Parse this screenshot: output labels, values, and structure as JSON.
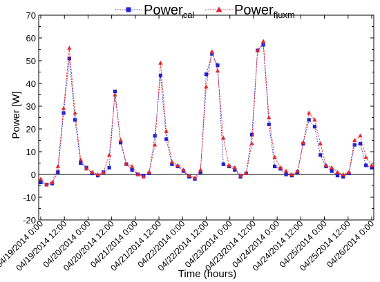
{
  "chart_data": {
    "type": "line",
    "xlabel": "Time (hours)",
    "ylabel": "Power [W]",
    "ylim": [
      -20,
      70
    ],
    "yticks": [
      -20,
      -10,
      0,
      10,
      20,
      30,
      40,
      50,
      60,
      70
    ],
    "xlim": [
      0,
      7
    ],
    "xunit": "days since 04/19/2014 0:00",
    "xtick_labels": [
      "04/19/2014 0:00",
      "04/19/2014 12:00",
      "04/20/2014 0:00",
      "04/20/2014 12:00",
      "04/21/2014 0:00",
      "04/21/2014 12:00",
      "04/22/2014 0:00",
      "04/22/2014 12:00",
      "04/23/2014 0:00",
      "04/23/2014 12:00",
      "04/24/2014 0:00",
      "04/24/2014 12:00",
      "04/25/2014 0:00",
      "04/25/2014 12:00",
      "04/26/2014 0:00"
    ],
    "grid": false,
    "legend_position": "top-center",
    "series": [
      {
        "name_main": "Power",
        "name_sub": "cal",
        "color": "#1f1fd1",
        "marker": "square",
        "values": [
          -3.5,
          -4.5,
          -4,
          1,
          27,
          51,
          24,
          5,
          3,
          0.5,
          -0.5,
          1,
          3,
          36.5,
          14,
          4.5,
          2,
          0,
          -0.5,
          0.5,
          17,
          43.5,
          15.5,
          4.5,
          3.5,
          1.5,
          -1,
          -2,
          1,
          44,
          53,
          48,
          4.5,
          3.5,
          2,
          -1,
          0.5,
          17.5,
          54.5,
          57,
          22,
          3.5,
          2.5,
          0,
          -0.5,
          1,
          13.5,
          24,
          21,
          8.5,
          3.5,
          1.5,
          -0.5,
          -1,
          0.5,
          13,
          13.5,
          4,
          3
        ]
      },
      {
        "name_main": "Power",
        "name_sub": "fluxm",
        "color": "#e8262c",
        "marker": "triangle",
        "values": [
          -2,
          -4.5,
          -3.5,
          3.5,
          29,
          55.5,
          27,
          6.5,
          2.5,
          1,
          0,
          1,
          8.5,
          35,
          15,
          4.5,
          3.5,
          0,
          -1,
          1,
          13,
          49,
          19,
          5.5,
          4,
          2,
          -0.5,
          -1.5,
          2,
          38.5,
          54,
          45.5,
          16,
          4,
          3,
          -0.5,
          0.5,
          13.5,
          54.5,
          58.5,
          25,
          7.5,
          3,
          1.5,
          0,
          1.5,
          14,
          27,
          24,
          13.5,
          4,
          3,
          1,
          0,
          1,
          15,
          17,
          7.5,
          4
        ]
      }
    ]
  }
}
